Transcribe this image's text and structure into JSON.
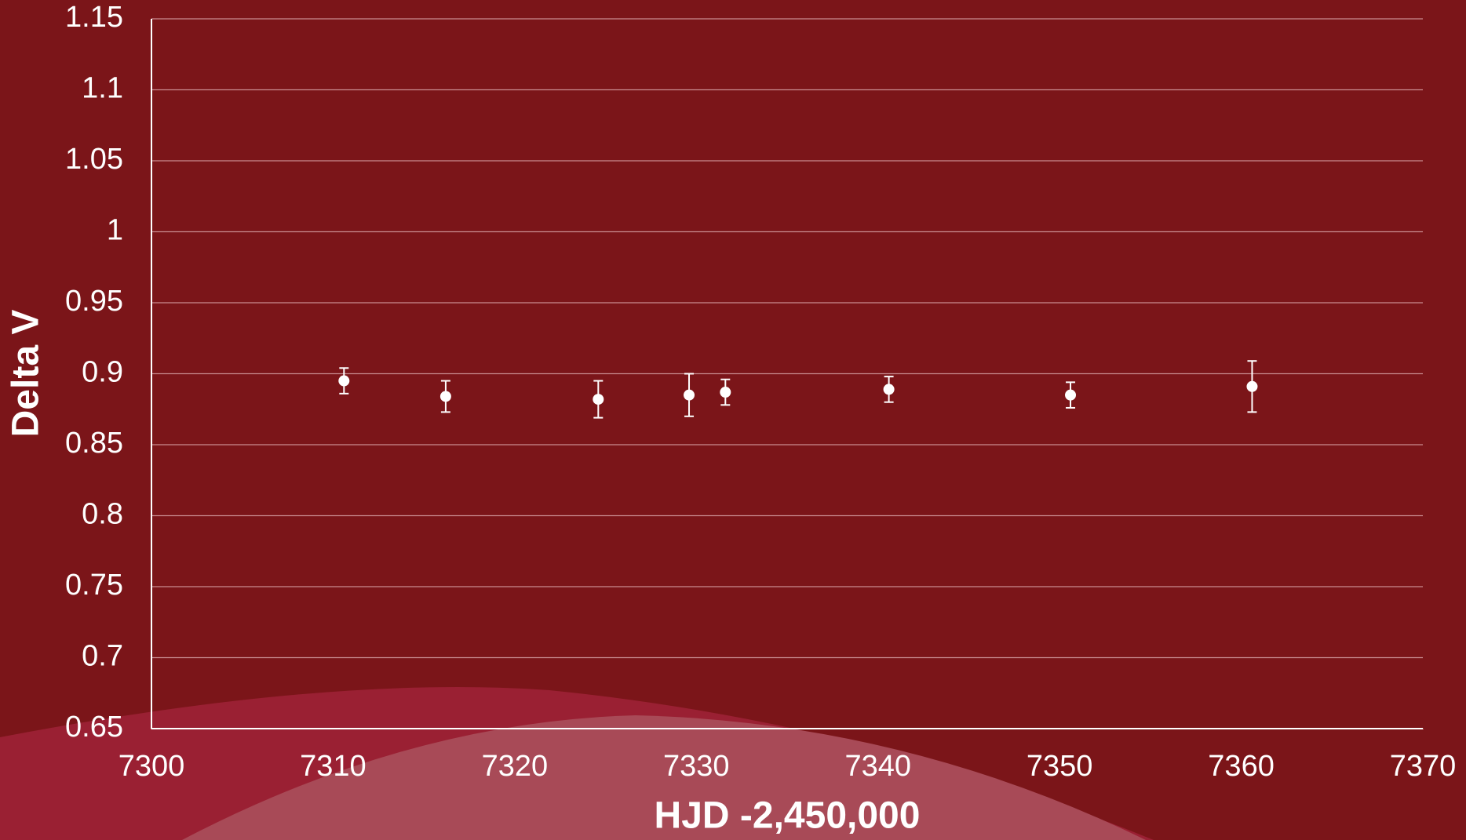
{
  "chart_data": {
    "type": "scatter",
    "x_label": "HJD -2,450,000",
    "y_label": "Delta V",
    "x": [
      7310.6,
      7316.2,
      7324.6,
      7329.6,
      7331.6,
      7340.6,
      7350.6,
      7360.6
    ],
    "values": [
      0.895,
      0.884,
      0.882,
      0.885,
      0.887,
      0.889,
      0.885,
      0.891
    ],
    "errors": [
      0.009,
      0.011,
      0.013,
      0.015,
      0.009,
      0.009,
      0.009,
      0.018
    ],
    "color": "#ffffff",
    "xlim": [
      7300,
      7370
    ],
    "xticks": [
      7300,
      7310,
      7320,
      7330,
      7340,
      7350,
      7360,
      7370
    ],
    "ylim": [
      0.65,
      1.15
    ],
    "yticks": [
      0.65,
      0.7,
      0.75,
      0.8,
      0.85,
      0.9,
      0.95,
      1,
      1.05,
      1.1,
      1.15
    ],
    "grid": true
  }
}
